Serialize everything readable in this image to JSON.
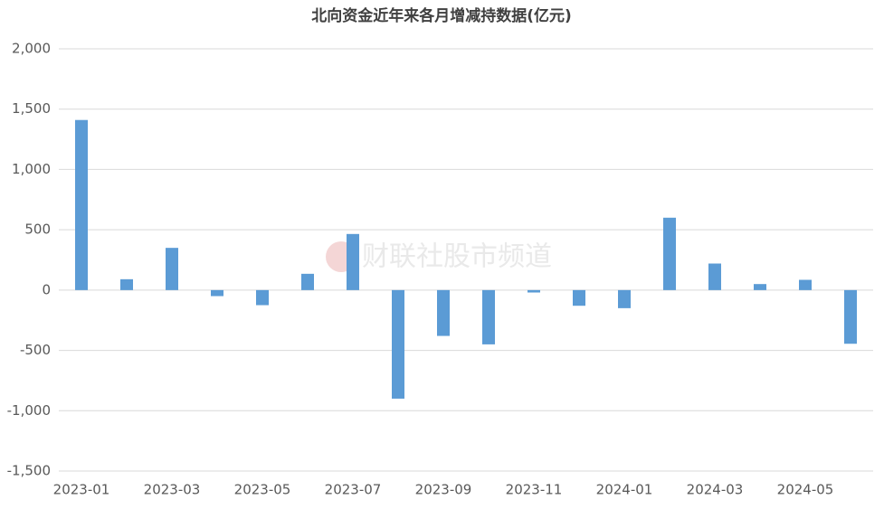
{
  "chart_data": {
    "type": "bar",
    "title": "北向资金近年来各月增减持数据(亿元)",
    "watermark": "财联社股市频道",
    "categories": [
      "2023-01",
      null,
      "2023-03",
      null,
      "2023-05",
      null,
      "2023-07",
      null,
      "2023-09",
      null,
      "2023-11",
      null,
      "2024-01",
      null,
      "2024-03",
      null,
      "2024-05",
      null
    ],
    "values": [
      1410,
      90,
      350,
      -50,
      -125,
      135,
      465,
      -900,
      -380,
      -450,
      -20,
      -130,
      -150,
      600,
      220,
      50,
      85,
      -445
    ],
    "color": "#5b9bd5",
    "ylim": [
      -1500,
      2000
    ],
    "yticks": [
      {
        "value": -1500,
        "label": "-1,500"
      },
      {
        "value": -1000,
        "label": "-1,000"
      },
      -500,
      0,
      500,
      {
        "value": 1000,
        "label": "1,000"
      },
      {
        "value": 1500,
        "label": "1,500"
      },
      {
        "value": 2000,
        "label": "2,000"
      }
    ],
    "grid": true
  }
}
